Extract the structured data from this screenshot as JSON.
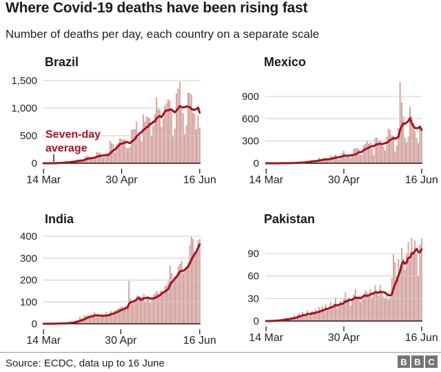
{
  "header": {
    "title": "Where Covid-19 deaths have been rising fast",
    "subtitle": "Number of deaths per day, each country on a separate scale"
  },
  "footer": {
    "source": "Source: ECDC, data up to 16 June",
    "logo_letters": [
      "B",
      "B",
      "C"
    ]
  },
  "colors": {
    "avg_line": "#a0141e",
    "bar_fill": "#eed0cd",
    "bar_stroke": "#c98d88",
    "grid": "#cccccc",
    "axis": "#1a1a1a",
    "text": "#222222",
    "title_text": "#1a1a1a",
    "logo_gray": "#757575",
    "divider": "#999999"
  },
  "chart_data": [
    {
      "id": "brazil",
      "type": "bar",
      "title": "Brazil",
      "x_start": "14 Mar",
      "x_end": "16 Jun",
      "xtick_labels": [
        "14 Mar",
        "30 Apr",
        "16 Jun"
      ],
      "yticks": [
        0,
        500,
        1000,
        1500
      ],
      "ytick_labels": [
        "0",
        "500",
        "1,000",
        "1,500"
      ],
      "annotation": {
        "line1": "Seven-day",
        "line2": "average"
      },
      "legend": "Seven-day average",
      "series": [
        {
          "name": "Daily deaths",
          "type": "bar",
          "values": [
            0,
            0,
            0,
            1,
            1,
            2,
            3,
            4,
            7,
            11,
            9,
            12,
            20,
            23,
            26,
            22,
            24,
            42,
            39,
            42,
            58,
            67,
            60,
            42,
            67,
            114,
            133,
            115,
            99,
            68,
            99,
            105,
            204,
            188,
            188,
            115,
            101,
            113,
            166,
            165,
            407,
            357,
            346,
            189,
            338,
            364,
            449,
            435,
            428,
            421,
            275,
            263,
            296,
            600,
            615,
            610,
            751,
            467,
            496,
            396,
            881,
            749,
            844,
            824,
            816,
            485,
            674,
            888,
            1188,
            1001,
            965,
            653,
            807,
            1039,
            1086,
            1156,
            1124,
            956,
            480,
            623,
            1262,
            1349,
            1473,
            1005,
            904,
            525,
            679,
            1272,
            1274,
            1239,
            909,
            892,
            612,
            867,
            641
          ]
        },
        {
          "name": "Seven-day average",
          "type": "line",
          "derived": "7-day trailing mean of Daily deaths"
        }
      ]
    },
    {
      "id": "mexico",
      "type": "bar",
      "title": "Mexico",
      "x_start": "14 Mar",
      "x_end": "16 Jun",
      "xtick_labels": [
        "14 Mar",
        "30 Apr",
        "16 Jun"
      ],
      "yticks": [
        0,
        300,
        600,
        900
      ],
      "ytick_labels": [
        "0",
        "300",
        "600",
        "900"
      ],
      "series": [
        {
          "name": "Daily deaths",
          "type": "bar",
          "values": [
            0,
            0,
            0,
            0,
            0,
            1,
            0,
            1,
            1,
            2,
            1,
            2,
            2,
            4,
            2,
            4,
            4,
            6,
            8,
            10,
            12,
            14,
            11,
            9,
            22,
            33,
            26,
            36,
            39,
            31,
            23,
            32,
            74,
            54,
            60,
            66,
            48,
            36,
            43,
            104,
            84,
            99,
            112,
            81,
            47,
            83,
            135,
            163,
            113,
            89,
            93,
            68,
            86,
            193,
            197,
            199,
            193,
            109,
            112,
            236,
            257,
            294,
            257,
            278,
            190,
            104,
            334,
            340,
            294,
            311,
            244,
            215,
            166,
            354,
            463,
            447,
            371,
            364,
            151,
            237,
            470,
            1092,
            816,
            625,
            341,
            273,
            354,
            758,
            625,
            540,
            425,
            341,
            269,
            497,
            446
          ]
        },
        {
          "name": "Seven-day average",
          "type": "line",
          "derived": "7-day trailing mean of Daily deaths"
        }
      ]
    },
    {
      "id": "india",
      "type": "bar",
      "title": "India",
      "x_start": "14 Mar",
      "x_end": "16 Jun",
      "xtick_labels": [
        "14 Mar",
        "30 Apr",
        "16 Jun"
      ],
      "yticks": [
        0,
        100,
        200,
        300,
        400
      ],
      "ytick_labels": [
        "0",
        "100",
        "200",
        "300",
        "400"
      ],
      "series": [
        {
          "name": "Daily deaths",
          "type": "bar",
          "values": [
            0,
            0,
            0,
            1,
            0,
            1,
            1,
            1,
            2,
            1,
            3,
            2,
            2,
            3,
            4,
            5,
            6,
            9,
            8,
            12,
            16,
            13,
            30,
            22,
            23,
            37,
            34,
            40,
            34,
            43,
            31,
            51,
            29,
            43,
            28,
            37,
            36,
            35,
            54,
            37,
            49,
            57,
            48,
            57,
            60,
            67,
            69,
            75,
            77,
            71,
            83,
            73,
            195,
            113,
            89,
            97,
            103,
            128,
            116,
            120,
            122,
            134,
            100,
            120,
            118,
            93,
            120,
            132,
            140,
            148,
            137,
            147,
            153,
            146,
            170,
            175,
            193,
            265,
            230,
            204,
            217,
            223,
            260,
            273,
            287,
            230,
            246,
            261,
            279,
            357,
            396,
            386,
            311,
            325,
            380,
            386
          ]
        },
        {
          "name": "Seven-day average",
          "type": "line",
          "derived": "7-day trailing mean of Daily deaths"
        }
      ]
    },
    {
      "id": "pakistan",
      "type": "bar",
      "title": "Pakistan",
      "x_start": "14 Mar",
      "x_end": "16 Jun",
      "xtick_labels": [
        "14 Mar",
        "30 Apr",
        "16 Jun"
      ],
      "yticks": [
        0,
        30,
        60,
        90
      ],
      "ytick_labels": [
        "0",
        "30",
        "60",
        "90"
      ],
      "series": [
        {
          "name": "Daily deaths",
          "type": "bar",
          "values": [
            0,
            0,
            0,
            0,
            1,
            0,
            2,
            1,
            1,
            2,
            2,
            3,
            4,
            2,
            3,
            5,
            4,
            7,
            5,
            8,
            10,
            7,
            12,
            6,
            9,
            14,
            7,
            12,
            13,
            10,
            15,
            11,
            18,
            13,
            19,
            16,
            22,
            14,
            17,
            25,
            19,
            23,
            31,
            16,
            20,
            26,
            24,
            30,
            38,
            28,
            31,
            20,
            27,
            35,
            42,
            30,
            33,
            25,
            32,
            36,
            40,
            38,
            35,
            42,
            31,
            36,
            47,
            38,
            33,
            48,
            36,
            32,
            30,
            34,
            28,
            31,
            57,
            88,
            78,
            60,
            82,
            67,
            97,
            83,
            68,
            89,
            105,
            81,
            110,
            93,
            107,
            89,
            60,
            101,
            110
          ]
        },
        {
          "name": "Seven-day average",
          "type": "line",
          "derived": "7-day trailing mean of Daily deaths"
        }
      ]
    }
  ]
}
